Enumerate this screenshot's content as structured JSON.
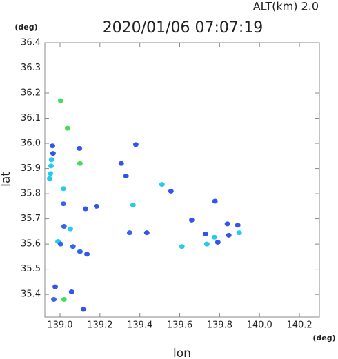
{
  "chart_data": {
    "type": "scatter",
    "title": "2020/01/06 07:07:19",
    "annotation": "ALT(km) 2.0",
    "ylabel": "lat",
    "yunit": "(deg)",
    "xlabel": "lon",
    "xunit": "(deg)",
    "xlim": [
      138.924,
      140.3
    ],
    "ylim": [
      35.31,
      36.4
    ],
    "xticks": [
      {
        "value": 139.0,
        "label": "139.0"
      },
      139.2,
      139.4,
      139.6,
      139.8,
      {
        "value": 140.0,
        "label": "140.0"
      },
      140.2
    ],
    "yticks": [
      36.4,
      36.3,
      36.2,
      36.1,
      {
        "value": 36.0,
        "label": "36.0"
      },
      35.9,
      35.8,
      35.7,
      35.6,
      35.5,
      35.4
    ],
    "x": [
      139.003,
      139.038,
      138.962,
      138.965,
      138.958,
      138.955,
      138.952,
      138.948,
      139.017,
      139.1,
      139.097,
      139.017,
      139.128,
      139.02,
      139.052,
      138.99,
      139.003,
      139.065,
      139.1,
      139.135,
      138.976,
      138.969,
      139.02,
      139.058,
      139.117,
      139.307,
      139.331,
      139.366,
      139.349,
      139.435,
      139.38,
      139.511,
      139.556,
      139.611,
      139.729,
      139.736,
      139.774,
      139.791,
      139.839,
      139.846,
      139.891,
      139.898,
      139.183,
      139.777,
      139.66
    ],
    "values": [
      36.17,
      36.06,
      35.99,
      35.96,
      35.935,
      35.91,
      35.88,
      35.86,
      35.82,
      35.92,
      35.98,
      35.76,
      35.74,
      35.67,
      35.66,
      35.61,
      35.6,
      35.59,
      35.57,
      35.56,
      35.43,
      35.38,
      35.38,
      35.41,
      35.34,
      35.92,
      35.87,
      35.755,
      35.645,
      35.645,
      35.995,
      35.837,
      35.81,
      35.59,
      35.64,
      35.6,
      35.627,
      35.607,
      35.68,
      35.635,
      35.675,
      35.645,
      35.75,
      35.77,
      35.695
    ],
    "colors": [
      "#44dd55",
      "#44dd55",
      "#3355ee",
      "#3355ee",
      "#22ccee",
      "#22ccee",
      "#22ccee",
      "#22ccee",
      "#22ccee",
      "#44dd55",
      "#3355ee",
      "#3366ee",
      "#3355ee",
      "#3366ee",
      "#22ccee",
      "#22ccee",
      "#3366ee",
      "#3366ee",
      "#3366ee",
      "#3355ee",
      "#3355ee",
      "#3366ee",
      "#44dd55",
      "#3355ee",
      "#3355ee",
      "#3355ee",
      "#3355ee",
      "#22ccee",
      "#3366ee",
      "#3355ee",
      "#3355ee",
      "#22ccee",
      "#3355ee",
      "#22ccee",
      "#3355ee",
      "#22ccee",
      "#22ccee",
      "#3355ee",
      "#3355ee",
      "#3355ee",
      "#3355ee",
      "#22ccee",
      "#3355ee",
      "#3355ee",
      "#3355ee"
    ]
  }
}
